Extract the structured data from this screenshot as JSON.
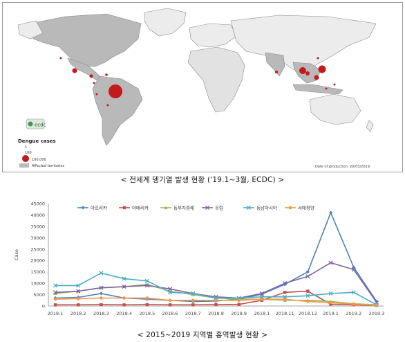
{
  "map": {
    "legend_title": "Dengue cases",
    "legend_scale": [
      "1",
      "100",
      "100,000"
    ],
    "legend_affected": "Affected territories",
    "production_note": "Date of production: 20/03/2019",
    "logo_text": "ecdc",
    "caption": "< 전세계 뎅기열 발생 현황 ('19.1~3월, ECDC) >",
    "colors": {
      "affected": "#b9b9b9",
      "unaffected": "#ececec",
      "ocean": "#ffffff",
      "bubble": "#c41a1a"
    }
  },
  "chart_data": {
    "type": "line",
    "title": "",
    "xlabel": "",
    "ylabel": "Case",
    "ylim": [
      0,
      45000
    ],
    "yticks": [
      0,
      5000,
      10000,
      15000,
      20000,
      25000,
      30000,
      35000,
      40000,
      45000
    ],
    "grid": false,
    "legend_position": "top",
    "x": [
      "2018.1",
      "2018.2",
      "2018.3",
      "2018.4",
      "2018.5",
      "2018.6",
      "2018.7",
      "2018.8",
      "2018.9",
      "2018.10",
      "2018.11",
      "2018.12",
      "2019.1",
      "2019.2",
      "2019.3"
    ],
    "xtick_labels": [
      "2018.1",
      "2018.2",
      "2018.3",
      "2018.4",
      "2018.5",
      "2018.6",
      "2018.7",
      "2018.8",
      "2018.9",
      "2018.1",
      "2018.11",
      "2018.12",
      "2019.1",
      "2019.2",
      "2019.3"
    ],
    "series": [
      {
        "name": "아프리카",
        "color": "#4f81bd",
        "marker": "diamond",
        "values": [
          3500,
          3800,
          5500,
          3500,
          3000,
          2500,
          2000,
          2200,
          3000,
          5200,
          9500,
          15000,
          41000,
          17000,
          2000
        ]
      },
      {
        "name": "아메리카",
        "color": "#c0504d",
        "marker": "square",
        "values": [
          500,
          500,
          600,
          500,
          600,
          500,
          500,
          600,
          700,
          2500,
          6000,
          6500,
          800,
          500,
          300
        ]
      },
      {
        "name": "동부지중해",
        "color": "#9bbb59",
        "marker": "triangle",
        "values": [
          5500,
          6500,
          8000,
          8500,
          9500,
          6500,
          5000,
          3500,
          3000,
          3000,
          2500,
          2500,
          2000,
          1000,
          500
        ]
      },
      {
        "name": "유럽",
        "color": "#8064a2",
        "marker": "x",
        "values": [
          6000,
          6500,
          8000,
          8500,
          9000,
          7500,
          5500,
          4000,
          3500,
          5500,
          10000,
          13000,
          19000,
          16000,
          1500
        ]
      },
      {
        "name": "동남아시아",
        "color": "#4bacc6",
        "marker": "x",
        "values": [
          9000,
          9000,
          14500,
          12000,
          11000,
          6000,
          5500,
          3500,
          3500,
          4000,
          4000,
          4500,
          5500,
          6000,
          500
        ]
      },
      {
        "name": "서태평양",
        "color": "#f79646",
        "marker": "circle",
        "values": [
          3000,
          3200,
          3500,
          3500,
          3500,
          2500,
          2500,
          2500,
          2500,
          3000,
          3000,
          2000,
          1500,
          800,
          300
        ]
      }
    ]
  },
  "chart_caption": "< 2015~2019 지역별 홍역발생 현황 >"
}
